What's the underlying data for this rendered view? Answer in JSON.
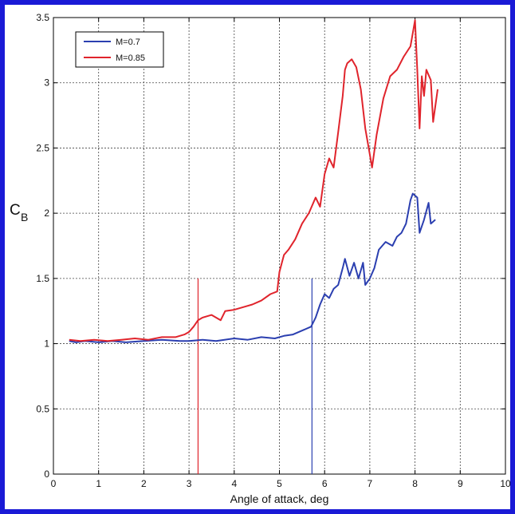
{
  "chart_data": {
    "type": "line",
    "xlabel": "Angle of attack, deg",
    "ylabel_main": "C",
    "ylabel_sub": "B",
    "xlim": [
      0,
      10
    ],
    "ylim": [
      0,
      3.5
    ],
    "xticks": [
      0,
      1,
      2,
      3,
      4,
      5,
      6,
      7,
      8,
      9,
      10
    ],
    "yticks": [
      0,
      0.5,
      1,
      1.5,
      2,
      2.5,
      3,
      3.5
    ],
    "xtick_labels": [
      "0",
      "1",
      "2",
      "3",
      "4",
      "5",
      "6",
      "7",
      "8",
      "9",
      "10"
    ],
    "ytick_labels": [
      "0",
      "0.5",
      "1",
      "1.5",
      "2",
      "2.5",
      "3",
      "3.5"
    ],
    "grid": true,
    "legend_position": "top-left",
    "series": [
      {
        "name": "M=0.7",
        "color": "#2b3fb0",
        "x": [
          0.35,
          0.5,
          0.7,
          1.0,
          1.3,
          1.6,
          2.0,
          2.4,
          2.8,
          3.0,
          3.3,
          3.6,
          4.0,
          4.3,
          4.6,
          4.9,
          5.1,
          5.3,
          5.5,
          5.7,
          5.8,
          5.9,
          6.0,
          6.1,
          6.2,
          6.3,
          6.4,
          6.45,
          6.55,
          6.65,
          6.75,
          6.85,
          6.9,
          7.0,
          7.1,
          7.2,
          7.35,
          7.5,
          7.6,
          7.7,
          7.8,
          7.9,
          7.95,
          8.05,
          8.1,
          8.2,
          8.3,
          8.35,
          8.45
        ],
        "y": [
          1.02,
          1.01,
          1.02,
          1.01,
          1.02,
          1.01,
          1.02,
          1.03,
          1.02,
          1.02,
          1.03,
          1.02,
          1.04,
          1.03,
          1.05,
          1.04,
          1.06,
          1.07,
          1.1,
          1.13,
          1.2,
          1.3,
          1.38,
          1.35,
          1.42,
          1.45,
          1.58,
          1.65,
          1.52,
          1.62,
          1.5,
          1.62,
          1.45,
          1.5,
          1.58,
          1.72,
          1.78,
          1.75,
          1.82,
          1.85,
          1.92,
          2.1,
          2.15,
          2.12,
          1.85,
          1.95,
          2.08,
          1.92,
          1.95
        ]
      },
      {
        "name": "M=0.85",
        "color": "#e0242c",
        "x": [
          0.35,
          0.6,
          0.9,
          1.2,
          1.5,
          1.8,
          2.1,
          2.4,
          2.7,
          2.9,
          3.0,
          3.1,
          3.2,
          3.3,
          3.5,
          3.7,
          3.8,
          4.0,
          4.2,
          4.4,
          4.6,
          4.8,
          4.95,
          5.0,
          5.1,
          5.2,
          5.35,
          5.5,
          5.65,
          5.8,
          5.9,
          6.0,
          6.1,
          6.2,
          6.3,
          6.4,
          6.45,
          6.5,
          6.6,
          6.7,
          6.8,
          6.9,
          7.0,
          7.05,
          7.15,
          7.3,
          7.45,
          7.6,
          7.75,
          7.9,
          8.0,
          8.05,
          8.1,
          8.15,
          8.2,
          8.25,
          8.35,
          8.4,
          8.5
        ],
        "y": [
          1.03,
          1.02,
          1.03,
          1.02,
          1.03,
          1.04,
          1.03,
          1.05,
          1.05,
          1.07,
          1.09,
          1.13,
          1.18,
          1.2,
          1.22,
          1.18,
          1.25,
          1.26,
          1.28,
          1.3,
          1.33,
          1.38,
          1.4,
          1.55,
          1.68,
          1.72,
          1.8,
          1.92,
          2.0,
          2.12,
          2.05,
          2.3,
          2.42,
          2.35,
          2.62,
          2.9,
          3.1,
          3.15,
          3.18,
          3.12,
          2.95,
          2.65,
          2.45,
          2.35,
          2.6,
          2.88,
          3.05,
          3.1,
          3.2,
          3.28,
          3.48,
          3.1,
          2.65,
          3.05,
          2.9,
          3.1,
          3.02,
          2.7,
          2.95
        ]
      }
    ],
    "vertical_markers": [
      {
        "x": 3.2,
        "y_top": 1.5,
        "color": "#e0242c"
      },
      {
        "x": 5.72,
        "y_top": 1.5,
        "color": "#2b3fb0"
      }
    ]
  }
}
